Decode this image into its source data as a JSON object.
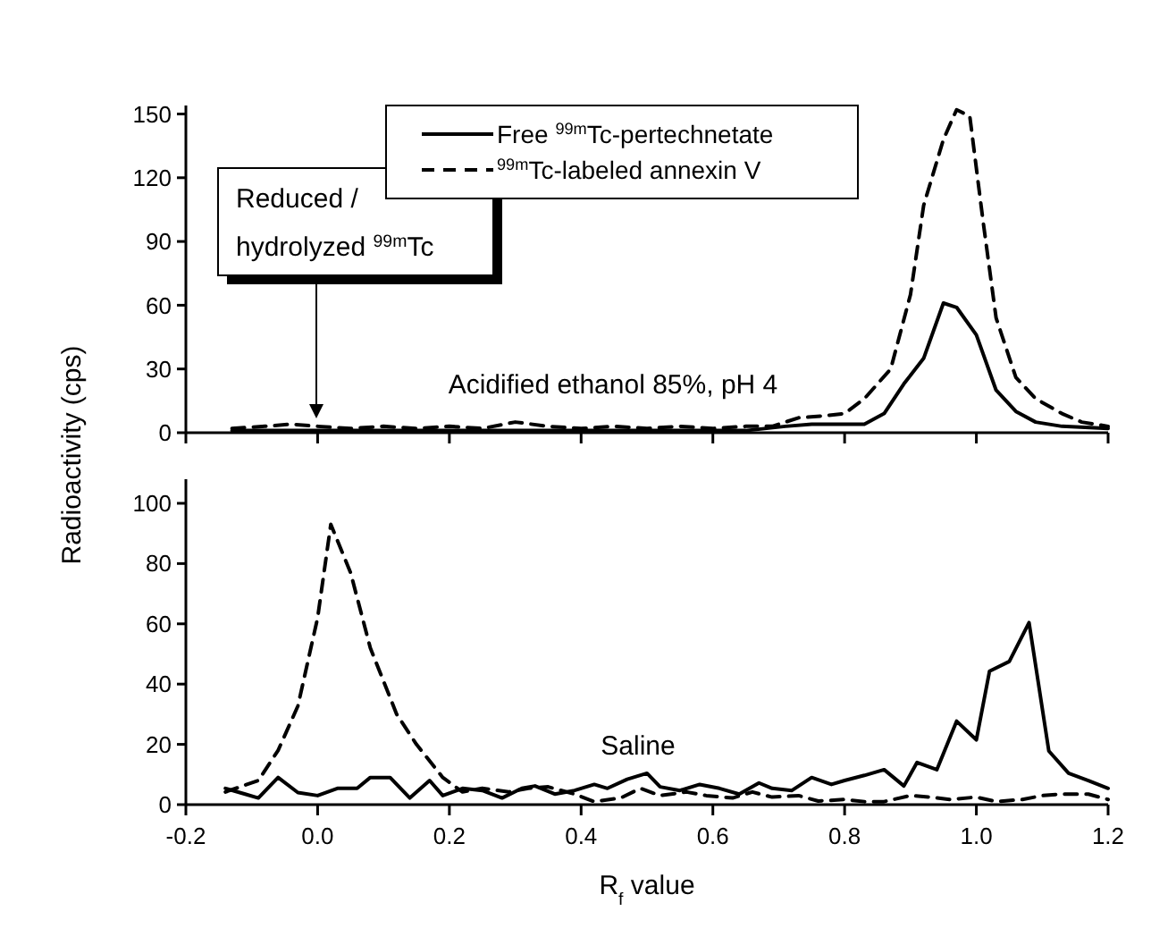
{
  "chart_data": [
    {
      "type": "line",
      "ylabel": "Radioactivity (cps)",
      "xlim": [
        -0.2,
        1.2
      ],
      "xticks": [
        -0.2,
        0,
        0.2,
        0.4,
        0.6,
        0.8,
        1,
        1.2
      ],
      "ylim": [
        0,
        154
      ],
      "yticks": [
        0,
        30,
        60,
        90,
        120,
        150
      ],
      "tick_labels": "y",
      "legend": "top",
      "grid": false,
      "annotations": [
        "Reduced / hydrolyzed $^{99m}$Tc",
        "Acidified ethanol 85%, pH 4"
      ],
      "series": [
        {
          "name": "Free $^{99m}$Tc-pertechnetate",
          "color": "#000000",
          "line_style": "solid",
          "x": [
            -0.13,
            -0.05,
            0.05,
            0.15,
            0.25,
            0.35,
            0.45,
            0.55,
            0.65,
            0.71,
            0.75,
            0.8,
            0.83,
            0.86,
            0.89,
            0.92,
            0.95,
            0.97,
            1.0,
            1.03,
            1.06,
            1.09,
            1.13,
            1.2
          ],
          "values": [
            1,
            1,
            1,
            1,
            1,
            1,
            1,
            1,
            1,
            3,
            4,
            4,
            4,
            9,
            23,
            35,
            61,
            59,
            46,
            20,
            10,
            5,
            3,
            2
          ]
        },
        {
          "name": "$^{99m}$Tc-labeled annexin V",
          "color": "#000000",
          "line_style": "dashed",
          "x": [
            -0.13,
            -0.08,
            -0.04,
            0,
            0.05,
            0.1,
            0.15,
            0.2,
            0.25,
            0.3,
            0.35,
            0.4,
            0.45,
            0.5,
            0.55,
            0.6,
            0.65,
            0.69,
            0.73,
            0.77,
            0.8,
            0.83,
            0.87,
            0.9,
            0.92,
            0.95,
            0.97,
            0.99,
            1.01,
            1.03,
            1.06,
            1.09,
            1.13,
            1.16,
            1.2
          ],
          "values": [
            2,
            3,
            4,
            3,
            2,
            3,
            2,
            3,
            2,
            5,
            3,
            2,
            3,
            2,
            3,
            2,
            3,
            3,
            7,
            8,
            9,
            16,
            30,
            65,
            107,
            138,
            152,
            149,
            100,
            54,
            26,
            16,
            9,
            5,
            3
          ]
        }
      ]
    },
    {
      "type": "line",
      "xlabel": "R$_{f}$ value",
      "xlim": [
        -0.2,
        1.2
      ],
      "xticks": [
        -0.2,
        {
          "value": 0,
          "label": "0.0"
        },
        0.2,
        0.4,
        0.6,
        0.8,
        {
          "value": 1,
          "label": "1.0"
        },
        1.2
      ],
      "ylim": [
        0,
        108
      ],
      "yticks": [
        0,
        20,
        40,
        60,
        80,
        100
      ],
      "grid": false,
      "annotations": [
        "Saline"
      ],
      "series": [
        {
          "color": "#000000",
          "line_style": "solid",
          "x": [
            -0.14,
            -0.11,
            -0.09,
            -0.06,
            -0.03,
            0,
            0.03,
            0.06,
            0.08,
            0.11,
            0.14,
            0.17,
            0.19,
            0.22,
            0.25,
            0.28,
            0.31,
            0.33,
            0.36,
            0.39,
            0.42,
            0.44,
            0.47,
            0.5,
            0.52,
            0.55,
            0.58,
            0.61,
            0.64,
            0.67,
            0.69,
            0.72,
            0.75,
            0.78,
            0.8,
            0.83,
            0.86,
            0.89,
            0.91,
            0.94,
            0.97,
            1.0,
            1.02,
            1.05,
            1.08,
            1.11,
            1.14,
            1.17,
            1.2
          ],
          "values": [
            5.4,
            3.5,
            2.2,
            9,
            4,
            3,
            5.4,
            5.4,
            9,
            9,
            2.2,
            8,
            3,
            5.4,
            4.7,
            2.2,
            5.4,
            6.2,
            3.5,
            4.7,
            6.7,
            5.4,
            8.4,
            10.4,
            5.9,
            4.7,
            6.7,
            5.4,
            3.5,
            7.2,
            5.4,
            4.7,
            9,
            6.7,
            8,
            9.7,
            11.6,
            6.2,
            14,
            11.6,
            27.7,
            21.5,
            44.3,
            47.5,
            60.4,
            17.8,
            10.4,
            8,
            5.4
          ]
        },
        {
          "color": "#000000",
          "line_style": "dashed",
          "x": [
            -0.14,
            -0.09,
            -0.06,
            -0.03,
            0,
            0.02,
            0.05,
            0.08,
            0.12,
            0.15,
            0.19,
            0.22,
            0.25,
            0.29,
            0.32,
            0.35,
            0.39,
            0.42,
            0.46,
            0.49,
            0.52,
            0.56,
            0.59,
            0.63,
            0.66,
            0.69,
            0.73,
            0.76,
            0.8,
            0.83,
            0.86,
            0.9,
            0.93,
            0.96,
            1.0,
            1.03,
            1.07,
            1.1,
            1.13,
            1.17,
            1.2
          ],
          "values": [
            4.2,
            8,
            18,
            32.7,
            62,
            93,
            77,
            52,
            30,
            20,
            9,
            4.2,
            5.4,
            4.2,
            5.4,
            5.9,
            3.5,
            1,
            2.2,
            5.4,
            3,
            4.2,
            3,
            2.2,
            4.2,
            2.5,
            3,
            1.2,
            1.7,
            1,
            1,
            3,
            2.5,
            1.7,
            2.5,
            1,
            1.7,
            3,
            3.5,
            3.5,
            1.7
          ]
        }
      ]
    }
  ]
}
